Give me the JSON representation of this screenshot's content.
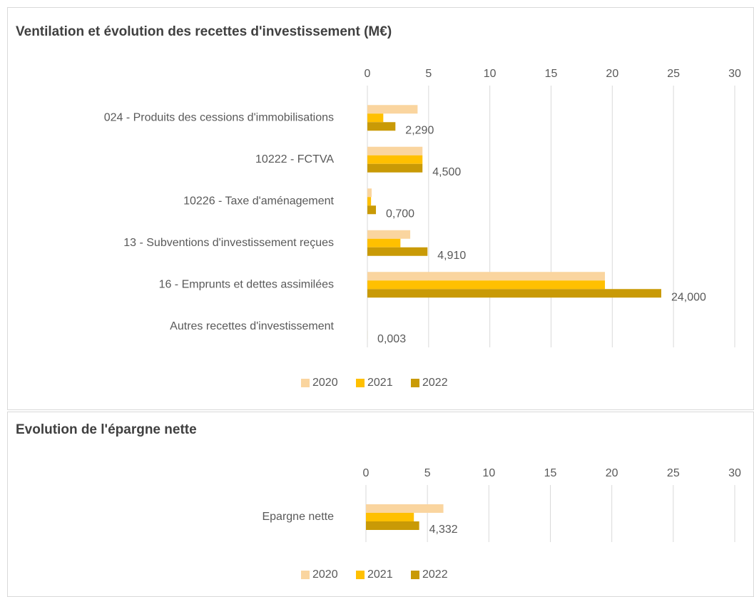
{
  "chart_data": [
    {
      "type": "bar",
      "orientation": "horizontal",
      "title": "Ventilation et évolution des recettes d'investissement (M€)",
      "categories": [
        "024 - Produits des cessions d'immobilisations",
        "10222 - FCTVA",
        "10226 - Taxe d'aménagement",
        "13 - Subventions d'investissement reçues",
        "16 - Emprunts et dettes assimilées",
        "Autres recettes d'investissement"
      ],
      "series": [
        {
          "name": "2020",
          "color": "#fad59f",
          "values": [
            4.1,
            4.5,
            0.35,
            3.5,
            19.4,
            0
          ]
        },
        {
          "name": "2021",
          "color": "#ffc000",
          "values": [
            1.3,
            4.5,
            0.3,
            2.7,
            19.4,
            0
          ]
        },
        {
          "name": "2022",
          "color": "#c99a06",
          "values": [
            2.29,
            4.5,
            0.7,
            4.91,
            24,
            0.003
          ],
          "value_labels": [
            "2,290",
            "4,500",
            "0,700",
            "4,910",
            "24,000",
            "0,003"
          ]
        }
      ],
      "xlim": [
        0,
        30
      ],
      "xticks": [
        0,
        5,
        10,
        15,
        20,
        25,
        30
      ],
      "grid": true,
      "legend": "bottom"
    },
    {
      "type": "bar",
      "orientation": "horizontal",
      "title": "Evolution de l'épargne nette",
      "categories": [
        "Epargne nette"
      ],
      "series": [
        {
          "name": "2020",
          "color": "#fad59f",
          "values": [
            6.3
          ]
        },
        {
          "name": "2021",
          "color": "#ffc000",
          "values": [
            3.9
          ]
        },
        {
          "name": "2022",
          "color": "#c99a06",
          "values": [
            4.332
          ],
          "value_labels": [
            "4,332"
          ]
        }
      ],
      "xlim": [
        0,
        30
      ],
      "xticks": [
        0,
        5,
        10,
        15,
        20,
        25,
        30
      ],
      "grid": true,
      "legend": "bottom"
    }
  ]
}
